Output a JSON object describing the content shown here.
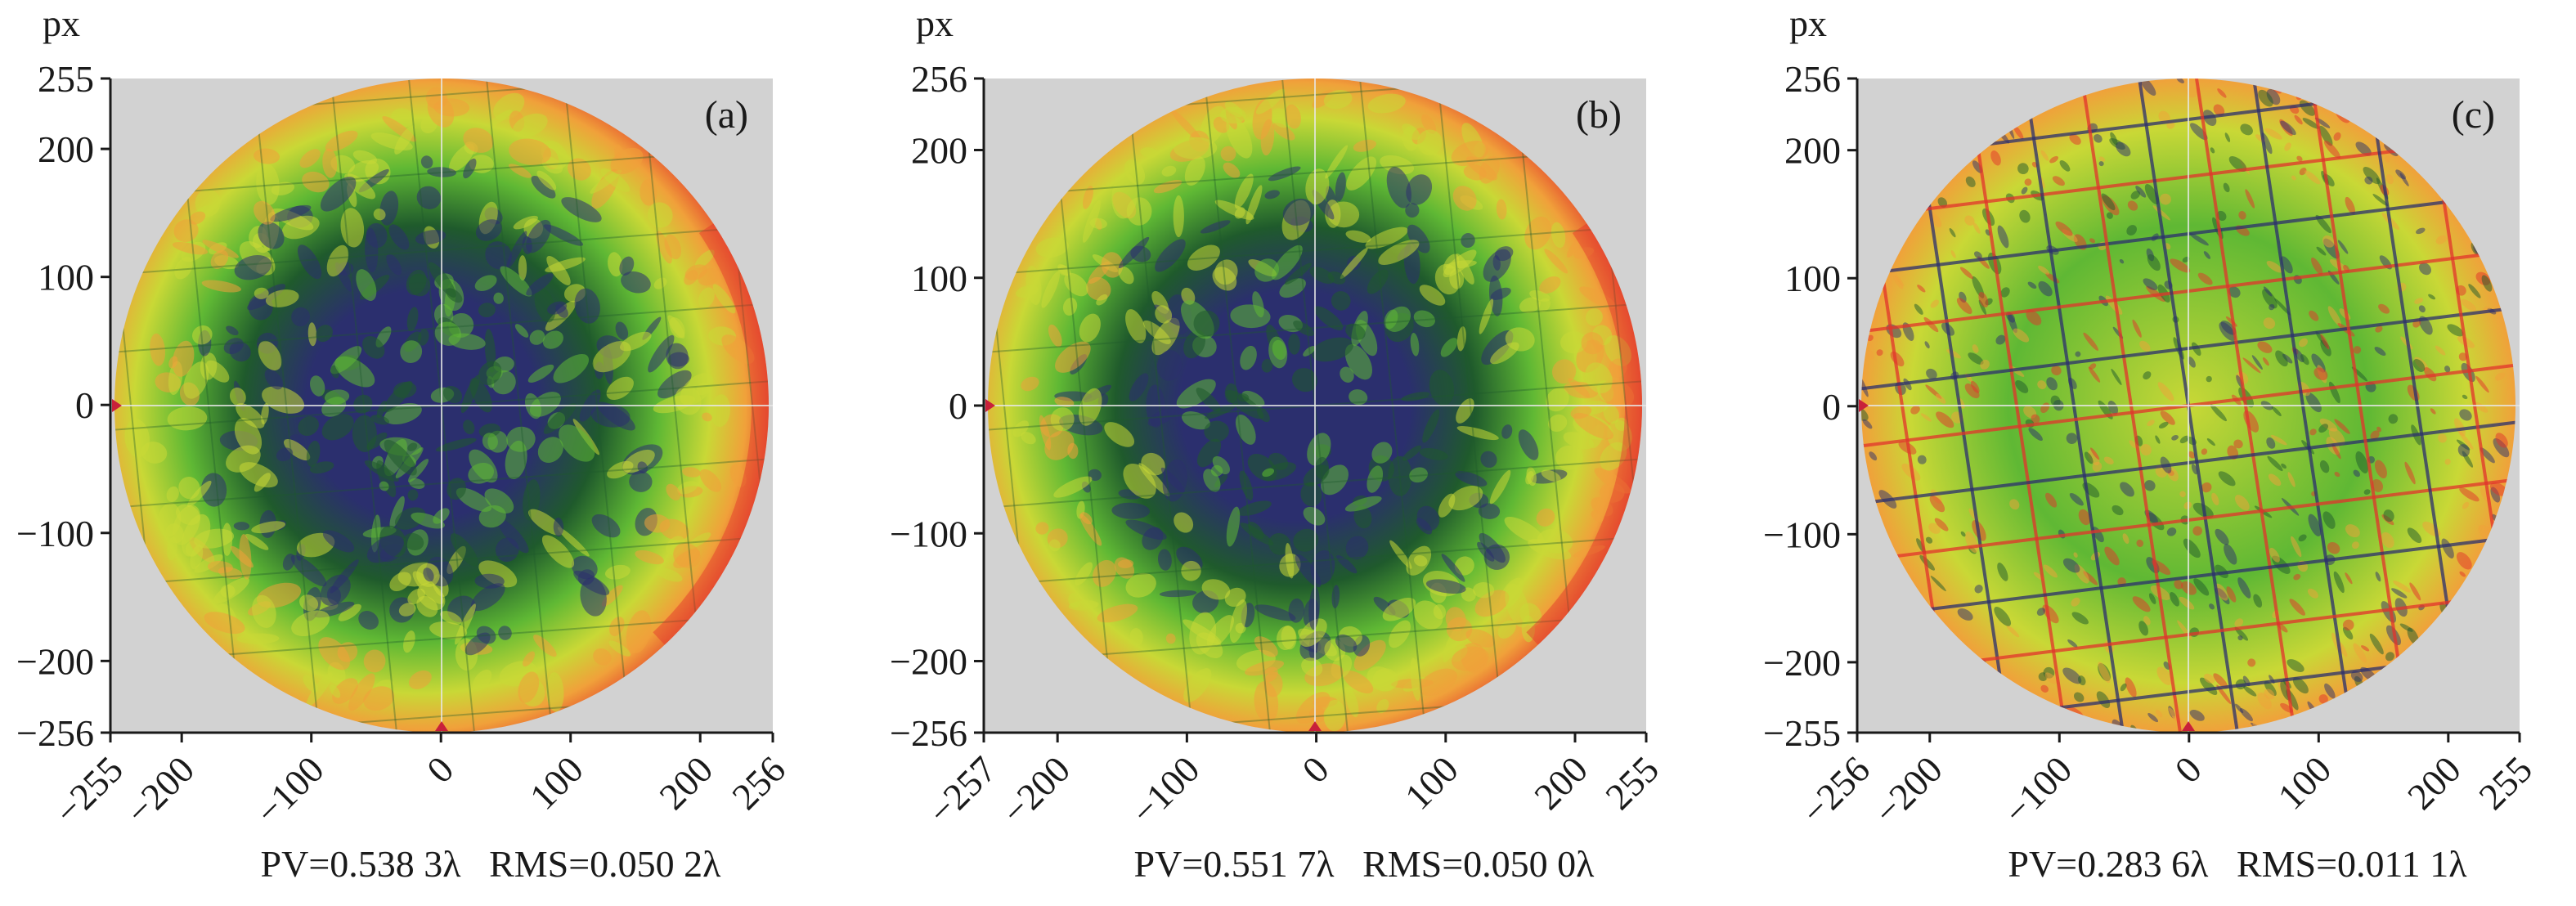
{
  "figure": {
    "panels": [
      {
        "tag": "(a)",
        "unit": "px",
        "y_ticks": [
          "255",
          "200",
          "100",
          "0",
          "−100",
          "−200",
          "−256"
        ],
        "x_ticks": [
          "−255",
          "−200",
          "−100",
          "0",
          "100",
          "200",
          "256"
        ],
        "caption": "PV=0.538 3λ   RMS=0.050 2λ",
        "pattern": "low-center"
      },
      {
        "tag": "(b)",
        "unit": "px",
        "y_ticks": [
          "256",
          "200",
          "100",
          "0",
          "−100",
          "−200",
          "−256"
        ],
        "x_ticks": [
          "−257",
          "−200",
          "−100",
          "0",
          "100",
          "200",
          "255"
        ],
        "caption": "PV=0.551 7λ   RMS=0.050 0λ",
        "pattern": "low-center"
      },
      {
        "tag": "(c)",
        "unit": "px",
        "y_ticks": [
          "256",
          "200",
          "100",
          "0",
          "−100",
          "−200",
          "−255"
        ],
        "x_ticks": [
          "−256",
          "−200",
          "−100",
          "0",
          "100",
          "200",
          "255"
        ],
        "caption": "PV=0.283 6λ   RMS=0.011 1λ",
        "pattern": "residual-grid"
      }
    ],
    "colors": {
      "plot_background": "#d2d2d2",
      "deep": "#2b2f6e",
      "dark_green": "#1f5a2c",
      "green": "#5fb834",
      "yellow_green": "#c9d836",
      "orange": "#f0a13a",
      "red": "#e2332c",
      "marker": "#c8203a"
    }
  }
}
